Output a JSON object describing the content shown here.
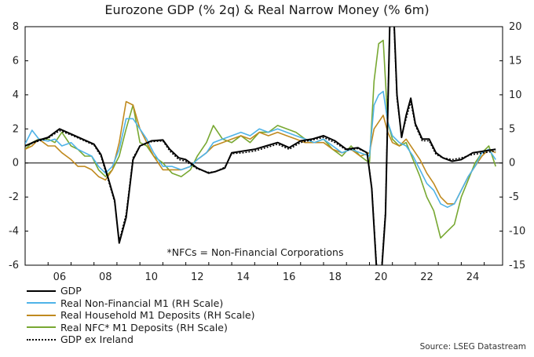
{
  "chart_data": {
    "type": "line",
    "title": "Eurozone GDP (% 2q) & Real Narrow Money (% 6m)",
    "annotation": "*NFCs = Non-Financial Corporations",
    "source": "Source: LSEG Datastream",
    "xlim": [
      2005.0,
      2025.8
    ],
    "ylim_left": [
      -6,
      8
    ],
    "ylim_right": [
      -15,
      20
    ],
    "left_ticks": [
      "8",
      "6",
      "4",
      "2",
      "0",
      "-2",
      "-4",
      "-6"
    ],
    "right_ticks": [
      "20",
      "15",
      "10",
      "5",
      "0",
      "-5",
      "-10",
      "-15"
    ],
    "x_ticks": [
      "06",
      "08",
      "10",
      "12",
      "14",
      "16",
      "18",
      "20",
      "22",
      "24"
    ],
    "grid": false,
    "legend_position": "bottom-left, below plot",
    "series": [
      {
        "name": "GDP",
        "axis": "left",
        "color": "#000000",
        "dash": "",
        "x": [
          2005.0,
          2005.5,
          2006.0,
          2006.5,
          2007.0,
          2007.5,
          2008.0,
          2008.3,
          2008.6,
          2008.9,
          2009.1,
          2009.4,
          2009.7,
          2010.0,
          2010.5,
          2011.0,
          2011.3,
          2011.7,
          2012.0,
          2012.5,
          2013.0,
          2013.3,
          2013.7,
          2014.0,
          2014.5,
          2015.0,
          2015.5,
          2016.0,
          2016.5,
          2017.0,
          2017.5,
          2018.0,
          2018.5,
          2019.0,
          2019.5,
          2019.9,
          2020.1,
          2020.3,
          2020.45,
          2020.55,
          2020.7,
          2020.8,
          2020.9,
          2021.05,
          2021.2,
          2021.4,
          2021.6,
          2021.8,
          2022.0,
          2022.3,
          2022.6,
          2022.9,
          2023.2,
          2023.6,
          2024.0,
          2024.5,
          2025.0,
          2025.5
        ],
        "y": [
          1.0,
          1.3,
          1.5,
          2.0,
          1.7,
          1.4,
          1.1,
          0.5,
          -0.8,
          -2.2,
          -4.7,
          -3.2,
          0.2,
          1.0,
          1.3,
          1.35,
          0.8,
          0.3,
          0.2,
          -0.3,
          -0.6,
          -0.5,
          -0.3,
          0.6,
          0.7,
          0.8,
          1.0,
          1.2,
          0.9,
          1.3,
          1.4,
          1.6,
          1.3,
          0.8,
          0.9,
          0.6,
          -1.5,
          -6.0,
          -8.0,
          -6.0,
          -3.0,
          3.0,
          9.0,
          9.0,
          4.0,
          1.5,
          2.8,
          3.8,
          2.3,
          1.4,
          1.4,
          0.6,
          0.3,
          0.1,
          0.2,
          0.6,
          0.7,
          0.8
        ]
      },
      {
        "name": "Real Non-Financial M1 (RH Scale)",
        "axis": "right",
        "color": "#4fb3e8",
        "dash": "",
        "x": [
          2005.0,
          2005.3,
          2005.6,
          2006.0,
          2006.3,
          2006.6,
          2007.0,
          2007.3,
          2007.6,
          2007.9,
          2008.2,
          2008.5,
          2008.8,
          2009.1,
          2009.4,
          2009.7,
          2010.0,
          2010.3,
          2010.6,
          2011.0,
          2011.4,
          2011.8,
          2012.2,
          2012.5,
          2012.9,
          2013.2,
          2013.6,
          2014.0,
          2014.4,
          2014.8,
          2015.2,
          2015.6,
          2016.0,
          2016.4,
          2016.8,
          2017.2,
          2017.6,
          2018.0,
          2018.4,
          2018.8,
          2019.2,
          2019.6,
          2020.0,
          2020.2,
          2020.4,
          2020.6,
          2020.8,
          2021.0,
          2021.3,
          2021.6,
          2021.9,
          2022.2,
          2022.5,
          2022.8,
          2023.1,
          2023.4,
          2023.7,
          2024.0,
          2024.3,
          2024.6,
          2024.9,
          2025.2,
          2025.5
        ],
        "y": [
          2.8,
          4.8,
          3.5,
          3.2,
          3.5,
          2.5,
          3.0,
          2.0,
          1.5,
          1.0,
          -0.5,
          -1.5,
          -0.5,
          2.0,
          6.5,
          6.5,
          5.0,
          3.5,
          1.5,
          -0.5,
          -0.5,
          -1.0,
          -0.5,
          0.5,
          1.5,
          3.0,
          3.5,
          4.0,
          4.5,
          4.0,
          5.0,
          4.5,
          5.0,
          4.5,
          4.0,
          3.5,
          3.0,
          3.5,
          2.5,
          1.5,
          2.0,
          1.5,
          1.0,
          8.5,
          10.0,
          10.5,
          6.0,
          4.0,
          3.0,
          2.5,
          1.0,
          -1.0,
          -3.0,
          -4.0,
          -6.0,
          -6.5,
          -6.0,
          -4.0,
          -2.0,
          -0.5,
          1.5,
          2.0,
          0.5
        ]
      },
      {
        "name": "Real Household M1 Deposits (RH Scale)",
        "axis": "right",
        "color": "#c08a1f",
        "dash": "",
        "x": [
          2005.0,
          2005.3,
          2005.6,
          2006.0,
          2006.3,
          2006.6,
          2007.0,
          2007.3,
          2007.6,
          2007.9,
          2008.2,
          2008.5,
          2008.8,
          2009.1,
          2009.4,
          2009.7,
          2010.0,
          2010.3,
          2010.6,
          2011.0,
          2011.4,
          2011.8,
          2012.2,
          2012.5,
          2012.9,
          2013.2,
          2013.6,
          2014.0,
          2014.4,
          2014.8,
          2015.2,
          2015.6,
          2016.0,
          2016.4,
          2016.8,
          2017.2,
          2017.6,
          2018.0,
          2018.4,
          2018.8,
          2019.2,
          2019.6,
          2020.0,
          2020.2,
          2020.4,
          2020.6,
          2020.8,
          2021.0,
          2021.3,
          2021.6,
          2021.9,
          2022.2,
          2022.5,
          2022.8,
          2023.1,
          2023.4,
          2023.7,
          2024.0,
          2024.3,
          2024.6,
          2024.9,
          2025.2,
          2025.5
        ],
        "y": [
          2.0,
          2.5,
          3.5,
          2.5,
          2.5,
          1.5,
          0.5,
          -0.5,
          -0.5,
          -1.0,
          -2.0,
          -2.5,
          -1.0,
          3.0,
          9.0,
          8.5,
          5.0,
          3.0,
          1.0,
          -1.0,
          -1.0,
          -1.0,
          -0.5,
          0.5,
          1.5,
          2.5,
          3.0,
          3.5,
          4.0,
          3.5,
          4.5,
          4.0,
          4.5,
          4.0,
          3.5,
          3.0,
          3.0,
          3.0,
          2.0,
          1.5,
          2.0,
          1.0,
          1.5,
          5.0,
          6.0,
          7.0,
          4.5,
          3.0,
          2.5,
          3.5,
          2.0,
          0.5,
          -1.5,
          -3.0,
          -5.0,
          -6.0,
          -6.0,
          -4.0,
          -2.0,
          -0.5,
          1.0,
          2.0,
          1.5
        ]
      },
      {
        "name": "Real NFC* M1 Deposits (RH Scale)",
        "axis": "right",
        "color": "#78a832",
        "dash": "",
        "x": [
          2005.0,
          2005.3,
          2005.6,
          2006.0,
          2006.3,
          2006.6,
          2007.0,
          2007.3,
          2007.6,
          2007.9,
          2008.2,
          2008.5,
          2008.8,
          2009.1,
          2009.4,
          2009.7,
          2010.0,
          2010.3,
          2010.6,
          2011.0,
          2011.4,
          2011.8,
          2012.2,
          2012.5,
          2012.9,
          2013.2,
          2013.6,
          2014.0,
          2014.4,
          2014.8,
          2015.2,
          2015.6,
          2016.0,
          2016.4,
          2016.8,
          2017.2,
          2017.6,
          2018.0,
          2018.4,
          2018.8,
          2019.2,
          2019.6,
          2020.0,
          2020.2,
          2020.4,
          2020.6,
          2020.8,
          2021.0,
          2021.3,
          2021.6,
          2021.9,
          2022.2,
          2022.5,
          2022.8,
          2023.1,
          2023.4,
          2023.7,
          2024.0,
          2024.3,
          2024.6,
          2024.9,
          2025.2,
          2025.5
        ],
        "y": [
          2.0,
          3.0,
          3.5,
          3.5,
          3.0,
          4.5,
          2.5,
          2.0,
          1.0,
          1.0,
          -1.0,
          -2.0,
          -1.0,
          1.0,
          5.0,
          8.5,
          3.0,
          2.5,
          1.0,
          0.0,
          -1.5,
          -2.0,
          -1.0,
          1.0,
          3.0,
          5.5,
          3.5,
          3.0,
          4.0,
          3.0,
          4.5,
          4.5,
          5.5,
          5.0,
          4.5,
          3.5,
          3.0,
          3.5,
          2.0,
          1.0,
          2.5,
          1.0,
          0.0,
          12.0,
          17.5,
          18.0,
          6.0,
          3.5,
          2.5,
          3.0,
          0.5,
          -2.0,
          -5.0,
          -7.0,
          -11.0,
          -10.0,
          -9.0,
          -5.0,
          -2.5,
          0.0,
          1.5,
          2.5,
          -0.5
        ]
      },
      {
        "name": "GDP ex Ireland",
        "axis": "left",
        "color": "#000000",
        "dash": "2 2",
        "x": [
          2005.0,
          2005.5,
          2006.0,
          2006.5,
          2007.0,
          2007.5,
          2008.0,
          2008.3,
          2008.6,
          2008.9,
          2009.1,
          2009.4,
          2009.7,
          2010.0,
          2010.5,
          2011.0,
          2011.3,
          2011.7,
          2012.0,
          2012.5,
          2013.0,
          2013.3,
          2013.7,
          2014.0,
          2014.5,
          2015.0,
          2015.5,
          2016.0,
          2016.5,
          2017.0,
          2017.5,
          2018.0,
          2018.5,
          2019.0,
          2019.5,
          2019.9,
          2020.1,
          2020.3,
          2020.45,
          2020.55,
          2020.7,
          2020.8,
          2020.9,
          2021.05,
          2021.2,
          2021.4,
          2021.6,
          2021.8,
          2022.0,
          2022.3,
          2022.6,
          2022.9,
          2023.2,
          2023.6,
          2024.0,
          2024.5,
          2025.0,
          2025.5
        ],
        "y": [
          1.0,
          1.25,
          1.45,
          1.9,
          1.65,
          1.35,
          1.05,
          0.4,
          -0.9,
          -2.3,
          -4.6,
          -3.0,
          0.3,
          1.0,
          1.25,
          1.3,
          0.7,
          0.2,
          0.1,
          -0.35,
          -0.55,
          -0.5,
          -0.25,
          0.55,
          0.6,
          0.7,
          0.9,
          1.1,
          0.8,
          1.2,
          1.35,
          1.5,
          1.2,
          0.75,
          0.85,
          0.6,
          -1.4,
          -5.8,
          -8.0,
          -5.8,
          -2.8,
          3.2,
          8.8,
          8.8,
          3.8,
          1.6,
          2.6,
          3.6,
          2.2,
          1.3,
          1.3,
          0.5,
          0.3,
          0.2,
          0.3,
          0.5,
          0.6,
          0.7
        ]
      }
    ]
  }
}
